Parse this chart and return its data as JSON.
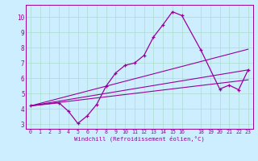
{
  "xlabel": "Windchill (Refroidissement éolien,°C)",
  "bg_color": "#cceeff",
  "line_color": "#990099",
  "grid_color": "#aaddcc",
  "xlim": [
    -0.5,
    23.5
  ],
  "ylim": [
    2.7,
    10.8
  ],
  "yticks": [
    3,
    4,
    5,
    6,
    7,
    8,
    9,
    10
  ],
  "xticks": [
    0,
    1,
    2,
    3,
    4,
    5,
    6,
    7,
    8,
    9,
    10,
    11,
    12,
    13,
    14,
    15,
    16,
    18,
    19,
    20,
    21,
    22,
    23
  ],
  "xtick_labels": [
    "0",
    "1",
    "2",
    "3",
    "4",
    "5",
    "6",
    "7",
    "8",
    "9",
    "10",
    "11",
    "12",
    "13",
    "14",
    "15",
    "16",
    "18",
    "19",
    "20",
    "21",
    "22",
    "23"
  ],
  "main_curve_x": [
    0,
    3,
    4,
    5,
    6,
    7,
    8,
    9,
    10,
    11,
    12,
    13,
    14,
    15,
    16,
    18,
    20,
    21,
    22,
    23
  ],
  "main_curve_y": [
    4.2,
    4.4,
    3.85,
    3.05,
    3.55,
    4.3,
    5.5,
    6.35,
    6.85,
    7.0,
    7.5,
    8.7,
    9.5,
    10.35,
    10.1,
    7.85,
    5.3,
    5.55,
    5.25,
    6.55
  ],
  "line2_x": [
    0,
    23
  ],
  "line2_y": [
    4.2,
    7.9
  ],
  "line3_x": [
    0,
    23
  ],
  "line3_y": [
    4.2,
    6.55
  ],
  "line4_x": [
    0,
    23
  ],
  "line4_y": [
    4.2,
    5.9
  ]
}
